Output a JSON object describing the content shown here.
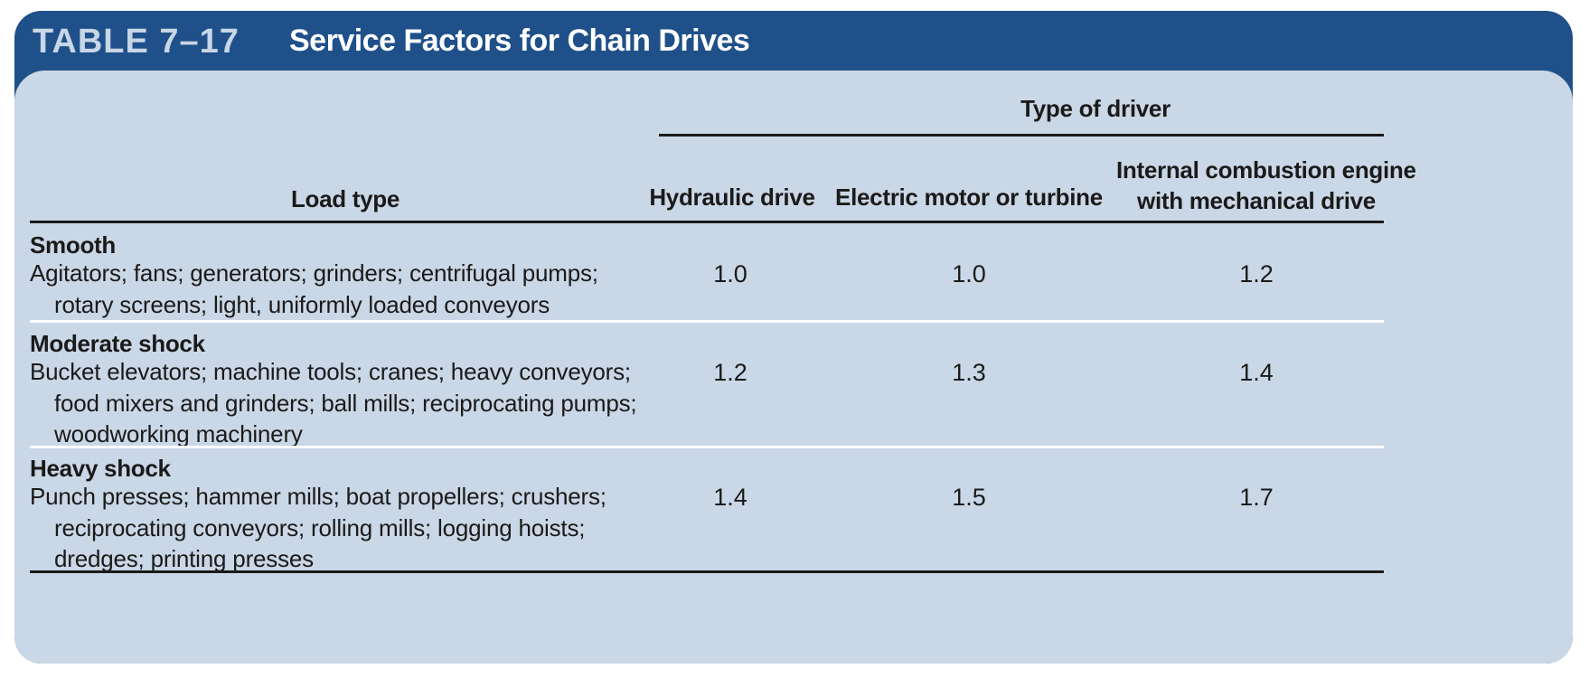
{
  "table": {
    "number": "TABLE 7–17",
    "title": "Service Factors for Chain Drives"
  },
  "header": {
    "group_label": "Type of driver",
    "load_type": "Load type",
    "columns": [
      [
        "Hydraulic drive"
      ],
      [
        "Electric motor or turbine"
      ],
      [
        "Internal combustion engine",
        "with mechanical drive"
      ]
    ]
  },
  "rows": [
    {
      "category": "Smooth",
      "description_lines": [
        "Agitators; fans; generators; grinders; centrifugal pumps;",
        "rotary screens; light, uniformly loaded conveyors"
      ],
      "values": [
        "1.0",
        "1.0",
        "1.2"
      ]
    },
    {
      "category": "Moderate shock",
      "description_lines": [
        "Bucket elevators; machine tools; cranes; heavy conveyors;",
        "food mixers and grinders; ball mills; reciprocating pumps;",
        "woodworking machinery"
      ],
      "values": [
        "1.2",
        "1.3",
        "1.4"
      ]
    },
    {
      "category": "Heavy shock",
      "description_lines": [
        "Punch presses; hammer mills; boat propellers; crushers;",
        "reciprocating conveyors; rolling mills; logging hoists;",
        "dredges; printing presses"
      ],
      "values": [
        "1.4",
        "1.5",
        "1.7"
      ]
    }
  ],
  "colors": {
    "banner": "#1f5089",
    "panel": "#cad7e6",
    "number_text": "#c8d6e6"
  }
}
